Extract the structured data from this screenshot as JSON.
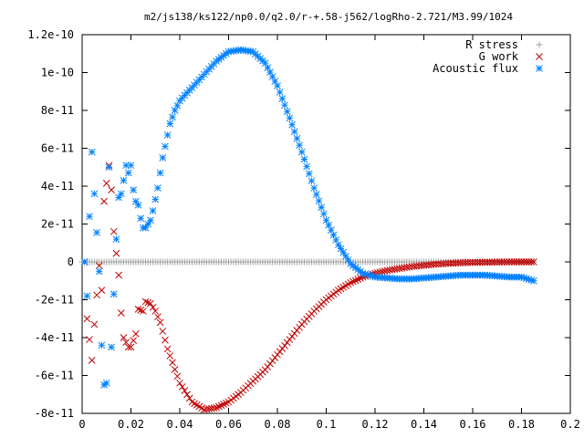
{
  "chart_data": {
    "type": "scatter",
    "title": "m2/js138/ks122/np0.0/q2.0/r-+.58-j562/logRho-2.721/M3.99/1024",
    "xlabel": "",
    "ylabel": "",
    "xlim": [
      0,
      0.2
    ],
    "ylim": [
      -8e-11,
      1.2e-10
    ],
    "x_ticks": [
      "0",
      "0.02",
      "0.04",
      "0.06",
      "0.08",
      "0.1",
      "0.12",
      "0.14",
      "0.16",
      "0.18",
      "0.2"
    ],
    "y_ticks": [
      "-8e-11",
      "-6e-11",
      "-4e-11",
      "-2e-11",
      "0",
      "2e-11",
      "4e-11",
      "6e-11",
      "8e-11",
      "1e-10",
      "1.2e-10"
    ],
    "grid": false,
    "legend": "top-right",
    "series": [
      {
        "name": "R stress",
        "marker": "+",
        "color": "#a0a0a0",
        "x": [
          0.0,
          0.185
        ],
        "y": [
          0,
          0
        ],
        "n_points": 186
      },
      {
        "name": "G work",
        "marker": "x",
        "color": "#c00000",
        "x": [
          0.001,
          0.002,
          0.004,
          0.005,
          0.007,
          0.008,
          0.009,
          0.011,
          0.012,
          0.013,
          0.015,
          0.016,
          0.017,
          0.019,
          0.02,
          0.022,
          0.023,
          0.025,
          0.026,
          0.028,
          0.03,
          0.032,
          0.035,
          0.04,
          0.045,
          0.05,
          0.055,
          0.06,
          0.065,
          0.07,
          0.075,
          0.08,
          0.085,
          0.09,
          0.095,
          0.1,
          0.105,
          0.11,
          0.115,
          0.12,
          0.125,
          0.13,
          0.135,
          0.14,
          0.145,
          0.15,
          0.155,
          0.16,
          0.165,
          0.17,
          0.175,
          0.18,
          0.185
        ],
        "y": [
          0,
          -3e-11,
          -5.2e-11,
          -3.3e-11,
          -2e-12,
          -1.5e-11,
          3.2e-11,
          5.1e-11,
          3.8e-11,
          1.6e-11,
          -7e-12,
          -2.7e-11,
          -4e-11,
          -4.5e-11,
          -4.5e-11,
          -3.8e-11,
          -2.5e-11,
          -2.6e-11,
          -2.1e-11,
          -2.2e-11,
          -2.6e-11,
          -3.2e-11,
          -4.6e-11,
          -6.4e-11,
          -7.4e-11,
          -7.8e-11,
          -7.7e-11,
          -7.4e-11,
          -6.9e-11,
          -6.3e-11,
          -5.7e-11,
          -4.9e-11,
          -4.1e-11,
          -3.3e-11,
          -2.6e-11,
          -2e-11,
          -1.5e-11,
          -1.1e-11,
          -8e-12,
          -6e-12,
          -4.5e-12,
          -3.5e-12,
          -2.5e-12,
          -1.8e-12,
          -1.2e-12,
          -8e-13,
          -5e-13,
          -3e-13,
          -2e-13,
          -1e-13,
          0,
          0,
          0
        ]
      },
      {
        "name": "Acoustic flux",
        "marker": "*",
        "color": "#0080ff",
        "x": [
          0.001,
          0.002,
          0.003,
          0.004,
          0.005,
          0.007,
          0.008,
          0.009,
          0.01,
          0.011,
          0.012,
          0.013,
          0.014,
          0.015,
          0.016,
          0.017,
          0.018,
          0.019,
          0.02,
          0.021,
          0.022,
          0.023,
          0.024,
          0.025,
          0.026,
          0.027,
          0.028,
          0.029,
          0.03,
          0.031,
          0.032,
          0.033,
          0.034,
          0.035,
          0.036,
          0.038,
          0.04,
          0.042,
          0.045,
          0.05,
          0.055,
          0.06,
          0.065,
          0.07,
          0.075,
          0.08,
          0.085,
          0.09,
          0.095,
          0.1,
          0.105,
          0.11,
          0.115,
          0.12,
          0.125,
          0.13,
          0.135,
          0.14,
          0.145,
          0.15,
          0.155,
          0.16,
          0.165,
          0.17,
          0.175,
          0.18,
          0.185
        ],
        "y": [
          0,
          -1.8e-11,
          2.4e-11,
          5.8e-11,
          3.6e-11,
          -5e-12,
          -4.4e-11,
          -6.5e-11,
          -6.4e-11,
          5e-11,
          -4.5e-11,
          -1.7e-11,
          1.2e-11,
          3.4e-11,
          3.6e-11,
          4.3e-11,
          5.1e-11,
          4.7e-11,
          5.1e-11,
          3.8e-11,
          3.2e-11,
          3e-11,
          2.3e-11,
          1.8e-11,
          1.8e-11,
          2e-11,
          2.2e-11,
          2.7e-11,
          3.3e-11,
          3.9e-11,
          4.7e-11,
          5.5e-11,
          6.1e-11,
          6.7e-11,
          7.3e-11,
          8e-11,
          8.5e-11,
          8.8e-11,
          9.2e-11,
          9.9e-11,
          1.06e-10,
          1.11e-10,
          1.12e-10,
          1.11e-10,
          1.05e-10,
          9.3e-11,
          7.6e-11,
          5.8e-11,
          3.9e-11,
          2.2e-11,
          9e-12,
          -1e-12,
          -6e-12,
          -8e-12,
          -8.5e-12,
          -9e-12,
          -9e-12,
          -8.5e-12,
          -8e-12,
          -7.5e-12,
          -7e-12,
          -7e-12,
          -7e-12,
          -7.5e-12,
          -8e-12,
          -8e-12,
          -1e-11
        ]
      }
    ]
  }
}
